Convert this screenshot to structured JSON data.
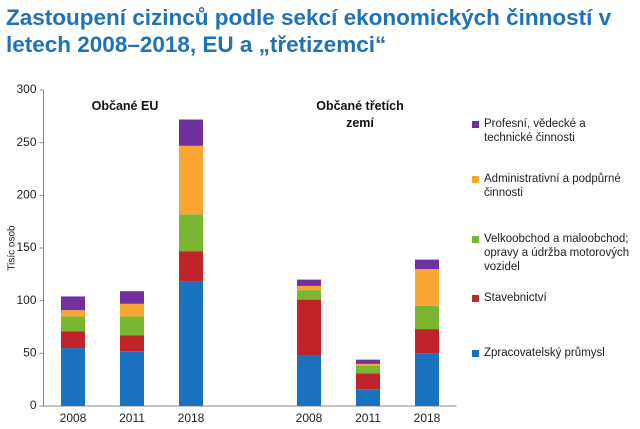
{
  "chart_data": {
    "type": "stacked-bar",
    "title": "Zastoupení cizinců podle sekcí ekonomických činností v letech 2008–2018, EU a „třetizemci“",
    "y_label": "Tisíc osob",
    "annotations": [
      "Občané EU",
      "Občané třetích zemí"
    ],
    "categories": [
      "2008",
      "2011",
      "2018",
      null,
      "2008",
      "2011",
      "2018"
    ],
    "series": [
      {
        "name": "Zpracovatelský průmysl",
        "color": "#1a71c0",
        "values": [
          55,
          52,
          118,
          null,
          48,
          16,
          50
        ]
      },
      {
        "name": "Stavebnictví",
        "color": "#c0232a",
        "values": [
          16,
          15,
          29,
          null,
          53,
          15,
          23
        ]
      },
      {
        "name": "Velkoobchod a maloobchod; opravy a údržba motorových vozidel",
        "color": "#7ab632",
        "values": [
          14,
          18,
          35,
          null,
          9,
          7,
          22
        ]
      },
      {
        "name": "Administrativní a podpůrné činnosti",
        "color": "#f9a533",
        "values": [
          6,
          12,
          65,
          null,
          4,
          2,
          35
        ]
      },
      {
        "name": "Profesní, vědecké a technické činnosti",
        "color": "#7030a0",
        "values": [
          13,
          12,
          25,
          null,
          6,
          4,
          9
        ]
      }
    ],
    "ylim": [
      0,
      300
    ],
    "yticks": [
      0,
      50,
      100,
      150,
      200,
      250,
      300
    ],
    "grid": false
  }
}
